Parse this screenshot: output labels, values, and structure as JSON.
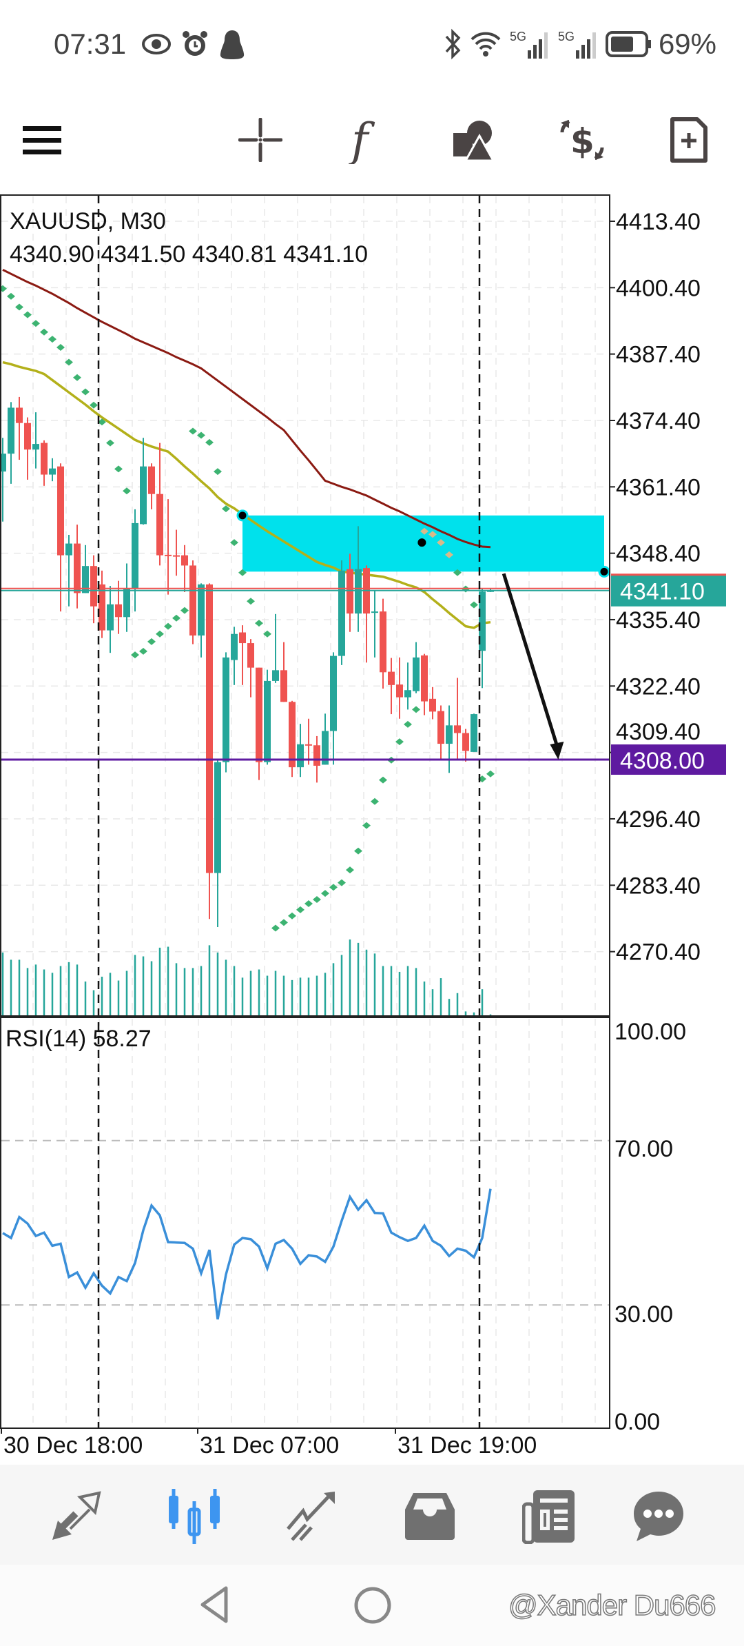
{
  "status_bar": {
    "time": "07:31",
    "left_icons": [
      "eye-icon",
      "alarm-icon",
      "penguin-icon"
    ],
    "right_icons": [
      "bluetooth-icon",
      "wifi-icon",
      "5g-signal-icon",
      "5g-signal-icon",
      "battery-icon"
    ],
    "network_label_1": "5G",
    "network_label_2": "5G",
    "battery_percent": "69%",
    "battery_level": 0.69
  },
  "toolbar": {
    "items": [
      {
        "name": "menu",
        "icon": "hamburger-icon"
      },
      {
        "name": "crosshair",
        "icon": "crosshair-icon"
      },
      {
        "name": "indicators",
        "icon": "function-icon",
        "glyph": "f"
      },
      {
        "name": "objects",
        "icon": "shapes-icon"
      },
      {
        "name": "symbol",
        "icon": "currency-exchange-icon"
      },
      {
        "name": "new-order",
        "icon": "new-document-icon"
      }
    ]
  },
  "chart": {
    "symbol_title": "XAUUSD, M30",
    "ohlc": {
      "open": "4340.90",
      "high": "4341.50",
      "low": "4340.81",
      "close": "4341.10"
    },
    "price_axis_labels": [
      "4413.40",
      "4400.40",
      "4387.40",
      "4374.40",
      "4361.40",
      "4348.40",
      "4335.40",
      "4322.40",
      "4309.40",
      "4296.40",
      "4283.40",
      "4270.40"
    ],
    "current_price_badge": "4341.10",
    "level_badge": "4308.00",
    "time_axis_labels": [
      "30 Dec 18:00",
      "31 Dec 07:00",
      "31 Dec 19:00"
    ],
    "rsi_title": "RSI(14)",
    "rsi_value": "58.27",
    "rsi_axis_labels": [
      "100.00",
      "70.00",
      "30.00",
      "0.00"
    ],
    "colors": {
      "bull": "#26a69a",
      "bear": "#ef5350",
      "ma_slow": "#8b1a12",
      "ma_fast": "#b3b01a",
      "sar": "#3cb371",
      "zone": "#00e1ec",
      "level": "#5e1aa0",
      "rsi": "#3a8fd9",
      "bid_line": "#26a69a",
      "ask_line": "#ef5350"
    }
  },
  "chart_data": {
    "type": "candlestick",
    "symbol": "XAUUSD",
    "timeframe": "M30",
    "ylim": [
      4262,
      4418
    ],
    "candles": [
      [
        4364.4,
        4371.0,
        4354.6,
        4367.9
      ],
      [
        4367.9,
        4378.0,
        4362.0,
        4376.9
      ],
      [
        4376.9,
        4379.0,
        4366.7,
        4373.9
      ],
      [
        4373.9,
        4375.0,
        4362.8,
        4368.7
      ],
      [
        4368.7,
        4376.0,
        4365.0,
        4369.8
      ],
      [
        4370.0,
        4370.5,
        4361.6,
        4363.8
      ],
      [
        4363.8,
        4367.0,
        4362.5,
        4365.0
      ],
      [
        4365.4,
        4366.0,
        4337.0,
        4348.0
      ],
      [
        4348.0,
        4352.0,
        4338.0,
        4350.3
      ],
      [
        4350.3,
        4354.0,
        4337.6,
        4340.6
      ],
      [
        4340.6,
        4350.0,
        4340.6,
        4345.9
      ],
      [
        4345.9,
        4348.0,
        4334.7,
        4338.0
      ],
      [
        4342.3,
        4345.0,
        4331.8,
        4333.3
      ],
      [
        4333.3,
        4342.0,
        4328.9,
        4338.4
      ],
      [
        4338.4,
        4343.0,
        4332.6,
        4335.9
      ],
      [
        4335.9,
        4346.4,
        4333.0,
        4341.5
      ],
      [
        4341.5,
        4357.0,
        4337.0,
        4354.3
      ],
      [
        4354.1,
        4371.0,
        4354.0,
        4365.4
      ],
      [
        4365.4,
        4366.0,
        4357.0,
        4360.0
      ],
      [
        4360.0,
        4370.0,
        4346.0,
        4348.0
      ],
      [
        4348.1,
        4359.0,
        4340.3,
        4347.9
      ],
      [
        4348.0,
        4353.0,
        4344.0,
        4347.8
      ],
      [
        4348.0,
        4350.0,
        4340.8,
        4346.0
      ],
      [
        4346.0,
        4347.0,
        4330.6,
        4332.3
      ],
      [
        4332.3,
        4342.5,
        4328.0,
        4342.3
      ],
      [
        4342.3,
        4342.5,
        4276.8,
        4285.8
      ],
      [
        4285.8,
        4308.0,
        4275.2,
        4307.5
      ],
      [
        4307.5,
        4329.0,
        4305.5,
        4328.0
      ],
      [
        4327.5,
        4334.0,
        4322.6,
        4332.6
      ],
      [
        4332.9,
        4334.3,
        4322.6,
        4330.8
      ],
      [
        4330.8,
        4331.6,
        4320.2,
        4326.0
      ],
      [
        4326.0,
        4326.0,
        4304.0,
        4307.5
      ],
      [
        4307.5,
        4325.6,
        4307.0,
        4323.4
      ],
      [
        4323.4,
        4336.5,
        4323.0,
        4325.5
      ],
      [
        4325.5,
        4331.0,
        4319.3,
        4319.3
      ],
      [
        4319.3,
        4319.5,
        4304.6,
        4306.5
      ],
      [
        4306.5,
        4315.0,
        4304.6,
        4311.0
      ],
      [
        4311.0,
        4316.0,
        4307.0,
        4310.8
      ],
      [
        4310.8,
        4312.6,
        4303.5,
        4306.8
      ],
      [
        4307.0,
        4317.0,
        4307.0,
        4313.6
      ],
      [
        4313.6,
        4329.0,
        4307.0,
        4328.3
      ],
      [
        4328.3,
        4347.0,
        4326.5,
        4345.0
      ],
      [
        4345.3,
        4348.3,
        4333.0,
        4336.6
      ],
      [
        4336.6,
        4353.7,
        4333.0,
        4345.3
      ],
      [
        4345.5,
        4346.0,
        4327.0,
        4336.6
      ],
      [
        4336.8,
        4341.0,
        4328.0,
        4337.0
      ],
      [
        4337.0,
        4339.5,
        4321.9,
        4325.1
      ],
      [
        4325.2,
        4327.9,
        4316.9,
        4322.6
      ],
      [
        4322.7,
        4328.0,
        4316.0,
        4320.2
      ],
      [
        4320.2,
        4327.0,
        4317.8,
        4321.6
      ],
      [
        4321.4,
        4331.0,
        4321.0,
        4328.0
      ],
      [
        4328.4,
        4328.7,
        4316.7,
        4319.4
      ],
      [
        4319.9,
        4322.2,
        4315.9,
        4317.4
      ],
      [
        4317.5,
        4318.6,
        4308.0,
        4311.1
      ],
      [
        4311.1,
        4318.6,
        4305.4,
        4314.7
      ],
      [
        4314.7,
        4324.0,
        4307.9,
        4313.2
      ],
      [
        4313.2,
        4314.0,
        4307.6,
        4309.7
      ],
      [
        4309.5,
        4317.0,
        4309.5,
        4316.9
      ],
      [
        4329.3,
        4341.5,
        4322.0,
        4340.9
      ],
      [
        4340.9,
        4341.5,
        4340.81,
        4341.1
      ]
    ],
    "candle_fields": [
      "open",
      "high",
      "low",
      "close"
    ],
    "ma_slow": [
      4403.9,
      4403.1,
      4402.3,
      4401.5,
      4400.8,
      4400.0,
      4399.2,
      4398.3,
      4397.4,
      4396.4,
      4395.5,
      4394.6,
      4393.7,
      4392.9,
      4392.1,
      4391.3,
      4390.4,
      4389.7,
      4389.0,
      4388.3,
      4387.6,
      4386.8,
      4386.1,
      4385.4,
      4384.6,
      4383.4,
      4382.2,
      4381.0,
      4379.8,
      4378.6,
      4377.4,
      4376.2,
      4375.0,
      4373.7,
      4372.5,
      4370.5,
      4368.5,
      4366.6,
      4364.6,
      4362.6,
      4362.0,
      4361.4,
      4360.9,
      4360.3,
      4359.7,
      4358.9,
      4358.1,
      4357.3,
      4356.6,
      4355.8,
      4355.0,
      4354.2,
      4353.5,
      4352.7,
      4352.0,
      4351.2,
      4350.6,
      4350.1,
      4349.7,
      4349.6
    ],
    "ma_fast": [
      4385.8,
      4385.4,
      4384.9,
      4384.5,
      4384.1,
      4383.5,
      4382.3,
      4381.1,
      4379.9,
      4378.7,
      4377.5,
      4376.2,
      4375.0,
      4373.9,
      4372.8,
      4371.7,
      4370.6,
      4369.9,
      4369.3,
      4368.8,
      4368.3,
      4366.9,
      4365.4,
      4364.0,
      4362.5,
      4361.1,
      4359.4,
      4358.1,
      4357.2,
      4356.0,
      4354.9,
      4353.8,
      4352.7,
      4351.7,
      4350.7,
      4349.7,
      4348.7,
      4347.7,
      4346.7,
      4346.1,
      4345.6,
      4344.8,
      4344.6,
      4344.4,
      4344.2,
      4344.0,
      4343.8,
      4343.3,
      4342.8,
      4342.2,
      4341.7,
      4340.8,
      4339.4,
      4338.1,
      4336.7,
      4335.4,
      4334.1,
      4333.8,
      4334.7,
      4334.9
    ],
    "parabolic_sar": [
      4400.2,
      4398.7,
      4396.6,
      4395.1,
      4393.4,
      4391.7,
      4390.3,
      4388.7,
      4385.8,
      4382.8,
      4380.0,
      4377.4,
      4374.1,
      4370.0,
      4364.9,
      4360.6,
      4328.5,
      4329.2,
      4331.1,
      4332.6,
      4334.1,
      4335.7,
      4337.2,
      4372.3,
      4371.5,
      4370.1,
      4364.4,
      4357.1,
      4350.5,
      4344.6,
      4339.0,
      4334.7,
      4332.6,
      4275.0,
      4276.1,
      4277.4,
      4278.6,
      4279.8,
      4280.6,
      4281.8,
      4283.0,
      4283.9,
      4286.4,
      4290.1,
      4295.1,
      4299.8,
      4304.0,
      4307.9,
      4311.5,
      4314.9,
      4317.8,
      4352.7,
      4352.1,
      4350.5,
      4348.1,
      4344.6,
      4341.4,
      4338.3,
      4304.2,
      4305.2
    ],
    "volume": [
      130,
      115,
      115,
      98,
      105,
      95,
      88,
      102,
      110,
      105,
      70,
      52,
      80,
      88,
      72,
      92,
      125,
      122,
      112,
      140,
      142,
      108,
      98,
      98,
      102,
      145,
      130,
      115,
      102,
      78,
      92,
      95,
      82,
      92,
      82,
      73,
      78,
      78,
      82,
      88,
      108,
      125,
      157,
      150,
      136,
      128,
      102,
      102,
      90,
      102,
      98,
      70,
      54,
      77,
      34,
      46,
      8,
      6,
      54,
      2
    ],
    "rsi": [
      47.5,
      46.3,
      51.4,
      49.8,
      46.8,
      47.6,
      44.4,
      44.9,
      36.8,
      37.9,
      34.2,
      37.7,
      34.7,
      32.8,
      36.8,
      35.8,
      40.2,
      48.2,
      54.2,
      51.8,
      45.3,
      45.2,
      45.1,
      43.7,
      37.7,
      43.4,
      26.5,
      37.4,
      44.7,
      46.3,
      46.0,
      44.2,
      38.9,
      44.9,
      45.8,
      43.7,
      40.0,
      42.1,
      41.8,
      40.5,
      44.2,
      50.5,
      56.3,
      53.2,
      55.5,
      52.4,
      52.3,
      47.6,
      46.5,
      45.6,
      46.3,
      49.3,
      45.6,
      44.4,
      41.9,
      43.7,
      43.2,
      41.6,
      46.3,
      58.27
    ],
    "rsi_levels": [
      70,
      30
    ],
    "rsi_ylim": [
      0,
      100
    ],
    "horizontal_level": 4308.0,
    "bid": 4341.1,
    "ask": 4341.5,
    "zone_rectangle": {
      "from_bar": 29,
      "to_bar": 73,
      "price_top": 4355.8,
      "price_bottom": 4344.8
    },
    "arrow": {
      "from_bar": 60.6,
      "from_price": 4344.4,
      "to_bar": 67.2,
      "to_price": 4308.0
    },
    "marker_dot": {
      "bar": 50.7,
      "price": 4350.5
    },
    "period_separators_bars": [
      11.6,
      57.7
    ],
    "grid": true
  },
  "bottom_nav": {
    "items": [
      {
        "name": "quotes",
        "icon": "quotes-arrows-icon",
        "active": false
      },
      {
        "name": "chart",
        "icon": "candlestick-icon",
        "active": true
      },
      {
        "name": "trade",
        "icon": "trade-trend-icon",
        "active": false
      },
      {
        "name": "history",
        "icon": "inbox-icon",
        "active": false
      },
      {
        "name": "news",
        "icon": "newspaper-icon",
        "active": false
      },
      {
        "name": "messages",
        "icon": "chat-bubble-icon",
        "active": false
      }
    ],
    "active_color": "#3d95f0",
    "inactive_color": "#707070"
  },
  "system_nav": {
    "watermark": "@Xander Du666"
  }
}
